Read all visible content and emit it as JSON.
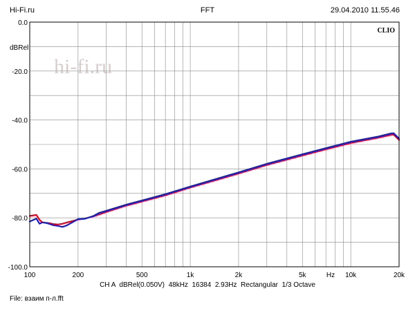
{
  "header": {
    "left": "Hi-Fi.ru",
    "center": "FFT",
    "right": "29.04.2010 11.55.46"
  },
  "watermark": "hi-fi.ru",
  "brand": "CLIO",
  "footer": {
    "settings": "CH A  dBRel(0.050V)  48kHz  16384  2.93Hz  Rectangular  1/3 Octave",
    "file": "File: взаим п-л.fft"
  },
  "colors": {
    "series_red": "#e8001c",
    "series_blue": "#1020d0",
    "grid": "#888888",
    "frame": "#000000",
    "watermark": "#b9a7a7"
  },
  "chart_data": {
    "type": "line",
    "xscale": "log",
    "xlim": [
      100,
      20000
    ],
    "ylim": [
      -100,
      0
    ],
    "grid": true,
    "ylabel": "dBRel",
    "xlabel": "Hz",
    "x_ticks": [
      {
        "value": 100,
        "label": "100"
      },
      {
        "value": 200,
        "label": "200"
      },
      {
        "value": 500,
        "label": "500"
      },
      {
        "value": 1000,
        "label": "1k"
      },
      {
        "value": 2000,
        "label": "2k"
      },
      {
        "value": 5000,
        "label": "5k"
      },
      {
        "value": 10000,
        "label": "10k"
      },
      {
        "value": 20000,
        "label": "20k"
      }
    ],
    "y_ticks": [
      {
        "value": 0,
        "label": "0.0"
      },
      {
        "value": -20,
        "label": "-20.0"
      },
      {
        "value": -40,
        "label": "-40.0"
      },
      {
        "value": -60,
        "label": "-60.0"
      },
      {
        "value": -80,
        "label": "-80.0"
      },
      {
        "value": -100,
        "label": "-100.0"
      }
    ],
    "series": [
      {
        "color": "#e8001c",
        "x": [
          100,
          110,
          115,
          120,
          130,
          140,
          150,
          160,
          170,
          180,
          200,
          220,
          250,
          300,
          400,
          500,
          700,
          1000,
          1500,
          2000,
          3000,
          5000,
          7000,
          10000,
          15000,
          17500,
          18500,
          20000
        ],
        "y": [
          -79.2,
          -78.8,
          -80.8,
          -81.9,
          -82.1,
          -82.5,
          -82.7,
          -82.4,
          -81.9,
          -81.5,
          -80.7,
          -80.3,
          -79.4,
          -77.6,
          -75.0,
          -73.3,
          -70.8,
          -67.6,
          -64.3,
          -61.9,
          -58.4,
          -54.5,
          -52.0,
          -49.4,
          -47.2,
          -46.2,
          -46.0,
          -48.2
        ]
      },
      {
        "color": "#1020d0",
        "x": [
          100,
          105,
          110,
          115,
          120,
          130,
          140,
          150,
          160,
          170,
          180,
          200,
          220,
          250,
          270,
          300,
          400,
          500,
          700,
          1000,
          1500,
          2000,
          3000,
          5000,
          7000,
          10000,
          15000,
          17500,
          18500,
          20000
        ],
        "y": [
          -81.5,
          -80.9,
          -80.3,
          -82.4,
          -81.8,
          -82.3,
          -83.0,
          -83.3,
          -83.7,
          -83.1,
          -82.2,
          -80.5,
          -80.4,
          -79.2,
          -78.0,
          -77.1,
          -74.6,
          -72.9,
          -70.3,
          -67.2,
          -63.8,
          -61.4,
          -57.9,
          -54.0,
          -51.5,
          -48.9,
          -46.7,
          -45.6,
          -45.4,
          -47.6
        ]
      }
    ]
  }
}
